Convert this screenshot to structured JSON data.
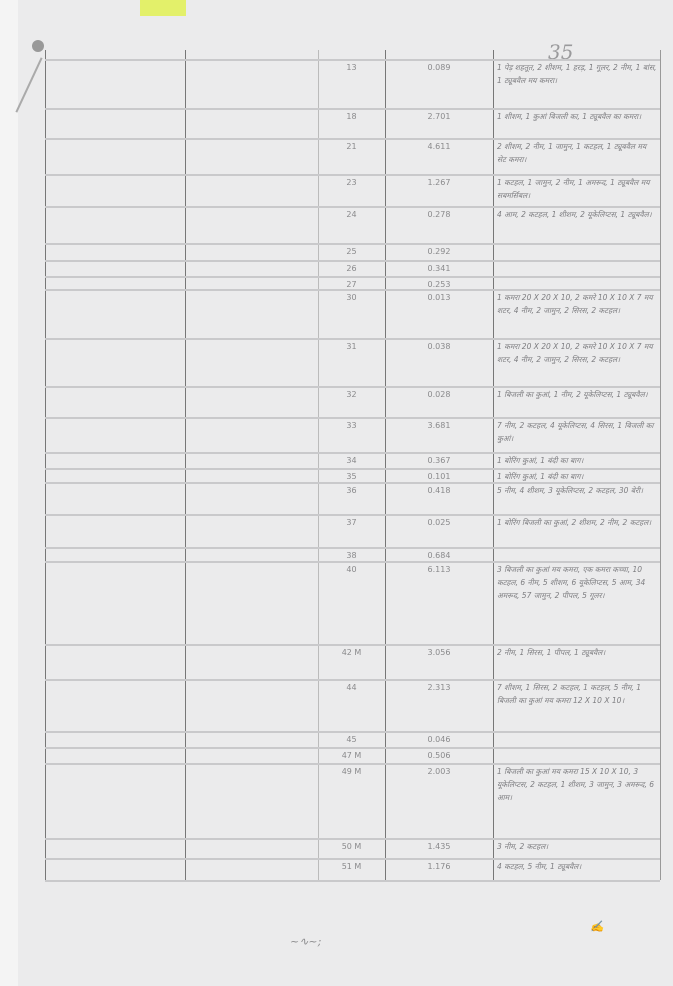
{
  "page_number": "35",
  "rows": [
    {
      "khasra": "13",
      "area": "0.089",
      "remark": "1 पेड़ शहतूत, 2 शीशम, 1 हरड़, 1 गूलर, 2 नीम, 1 बांस, 1 ट्यूबवैल मय कमरा।"
    },
    {
      "khasra": "18",
      "area": "2.701",
      "remark": "1 शीशम, 1 कुआं बिजली का, 1 ट्यूबवैल का कमरा।"
    },
    {
      "khasra": "21",
      "area": "4.611",
      "remark": "2 शीशम, 2 नीम, 1 जामुन, 1 कटहल, 1 ट्यूबवैल मय सेट कमरा।"
    },
    {
      "khasra": "23",
      "area": "1.267",
      "remark": "1 कटहल, 1 जामुन, 2 नीम, 1 अमरूद, 1 ट्यूबवैल मय सबमर्सिबल।"
    },
    {
      "khasra": "24",
      "area": "0.278",
      "remark": "4 आम, 2 कटहल, 1 शीशम, 2 यूकेलिप्टस, 1 ट्यूबवैल।"
    },
    {
      "khasra": "25",
      "area": "0.292",
      "remark": ""
    },
    {
      "khasra": "26",
      "area": "0.341",
      "remark": ""
    },
    {
      "khasra": "27",
      "area": "0.253",
      "remark": ""
    },
    {
      "khasra": "30",
      "area": "0.013",
      "remark": "1 कमरा 20 X 20 X 10, 2 कमरे 10 X 10 X 7 मय शटर, 4 नीम, 2 जामुन, 2 सिरस, 2 कटहल।"
    },
    {
      "khasra": "31",
      "area": "0.038",
      "remark": "1 कमरा 20 X 20 X 10, 2 कमरे 10 X 10 X 7 मय शटर, 4 नीम, 2 जामुन, 2 सिरस, 2 कटहल।"
    },
    {
      "khasra": "32",
      "area": "0.028",
      "remark": "1 बिजली का कुआं, 1 नीम, 2 यूकेलिप्टस, 1 ट्यूबवैल।"
    },
    {
      "khasra": "33",
      "area": "3.681",
      "remark": "7 नीम, 2 कटहल, 4 यूकेलिप्टस, 4 सिरस, 1 बिजली का कुआं।"
    },
    {
      "khasra": "34",
      "area": "0.367",
      "remark": "1 बोरिंग कुआं, 1 बंदी का बाग।"
    },
    {
      "khasra": "35",
      "area": "0.101",
      "remark": "1 बोरिंग कुआं, 1 बंदी का बाग।"
    },
    {
      "khasra": "36",
      "area": "0.418",
      "remark": "5 नीम, 4 शीशम, 3 यूकेलिप्टस, 2 कटहल, 30 बेरी।"
    },
    {
      "khasra": "37",
      "area": "0.025",
      "remark": "1 बोरिंग बिजली का कुआं, 2 शीशम, 2 नीम, 2 कटहल।"
    },
    {
      "khasra": "38",
      "area": "0.684",
      "remark": ""
    },
    {
      "khasra": "40",
      "area": "6.113",
      "remark": "3 बिजली का कुआं मय कमरा, एक कमरा कच्चा, 10 कटहल, 6 नीम, 5 शीशम, 6 यूकेलिप्टस, 5 आम, 34 अमरूद, 57 जामुन, 2 पीपल, 5 गूलर।"
    },
    {
      "khasra": "42 M",
      "area": "3.056",
      "remark": "2 नीम, 1 सिरस, 1 पीपल, 1 ट्यूबवैल।"
    },
    {
      "khasra": "44",
      "area": "2.313",
      "remark": "7 शीशम, 1 सिरस, 2 कटहल, 1 कटहल, 5 नीम, 1 बिजली का कुआं मय कमरा 12 X 10 X 10।"
    },
    {
      "khasra": "45",
      "area": "0.046",
      "remark": ""
    },
    {
      "khasra": "47 M",
      "area": "0.506",
      "remark": ""
    },
    {
      "khasra": "49 M",
      "area": "2.003",
      "remark": "1 बिजली का कुआं मय कमरा 15 X 10 X 10, 3 यूकेलिप्टस, 2 कटहल, 1 शीशम, 3 जामुन, 3 अमरूद, 6 आम।"
    },
    {
      "khasra": "50 M",
      "area": "1.435",
      "remark": "3 नीम, 2 कटहल।"
    },
    {
      "khasra": "51 M",
      "area": "1.176",
      "remark": "4 कटहल, 5 नीम, 1 ट्यूबवैल।"
    }
  ]
}
